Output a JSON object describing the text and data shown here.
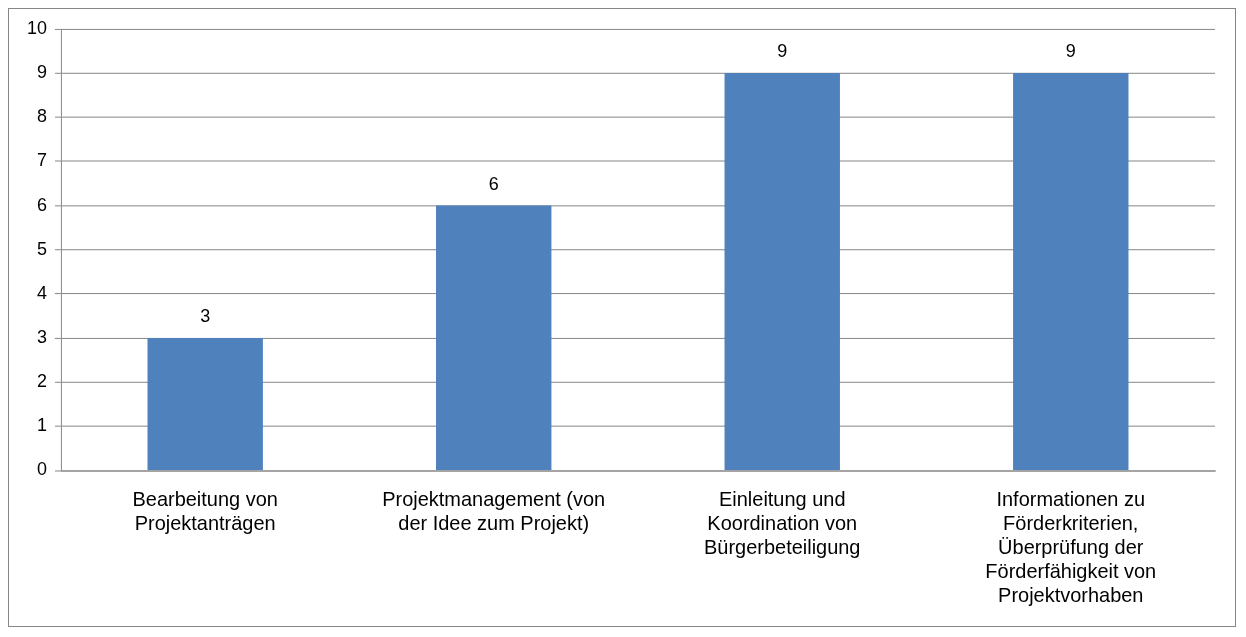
{
  "chart_data": {
    "type": "bar",
    "categories": [
      "Bearbeitung von Projektanträgen",
      "Projektmanagement (von der Idee zum Projekt)",
      "Einleitung und Koordination von Bürgerbeteiligung",
      "Informationen zu Förderkriterien, Überprüfung der Förderfähigkeit von Projektvorhaben"
    ],
    "values": [
      3,
      6,
      9,
      9
    ],
    "color": "#4f81bd",
    "ylim": [
      0,
      10
    ],
    "yticks": [
      0,
      1,
      2,
      3,
      4,
      5,
      6,
      7,
      8,
      9,
      10
    ],
    "grid": "y",
    "data_labels": true,
    "legend": false
  }
}
